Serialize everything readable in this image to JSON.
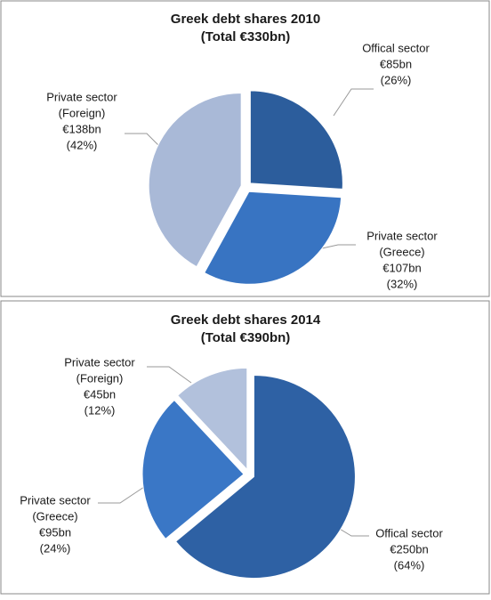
{
  "chart_data": [
    {
      "type": "pie",
      "title": "Greek debt shares 2010",
      "subtitle": "(Total €330bn)",
      "categories": [
        [
          "Offical sector"
        ],
        [
          "Private sector",
          "(Greece)"
        ],
        [
          "Private sector",
          "(Foreign)"
        ]
      ],
      "values": [
        26,
        32,
        42
      ],
      "value_labels": [
        "(26%)",
        "(32%)",
        "(42%)"
      ],
      "amounts": [
        85,
        107,
        138
      ],
      "amount_labels": [
        "€85bn",
        "€107bn",
        "€138bn"
      ],
      "colors": [
        "#2c5d9c",
        "#3874c2",
        "#a9b9d7"
      ]
    },
    {
      "type": "pie",
      "title": "Greek debt shares 2014",
      "subtitle": "(Total €390bn)",
      "categories": [
        [
          "Offical sector"
        ],
        [
          "Private sector",
          "(Greece)"
        ],
        [
          "Private sector",
          "(Foreign)"
        ]
      ],
      "values": [
        64,
        24,
        12
      ],
      "value_labels": [
        "(64%)",
        "(24%)",
        "(12%)"
      ],
      "amounts": [
        250,
        95,
        45
      ],
      "amount_labels": [
        "€250bn",
        "€95bn",
        "€45bn"
      ],
      "colors": [
        "#2e61a4",
        "#3a77c6",
        "#b2c1dc"
      ]
    }
  ]
}
